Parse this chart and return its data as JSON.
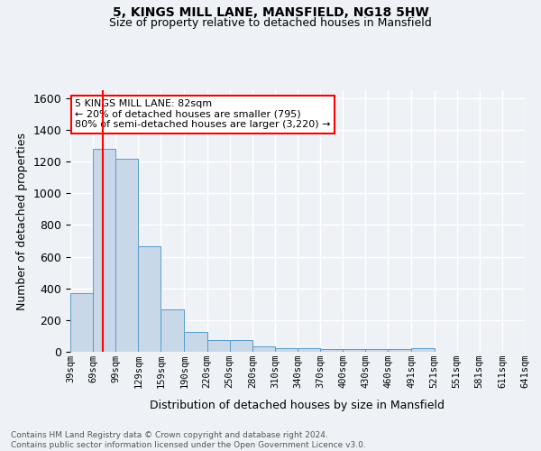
{
  "title1": "5, KINGS MILL LANE, MANSFIELD, NG18 5HW",
  "title2": "Size of property relative to detached houses in Mansfield",
  "xlabel": "Distribution of detached houses by size in Mansfield",
  "ylabel": "Number of detached properties",
  "footnote": "Contains HM Land Registry data © Crown copyright and database right 2024.\nContains public sector information licensed under the Open Government Licence v3.0.",
  "annotation_line1": "5 KINGS MILL LANE: 82sqm",
  "annotation_line2": "← 20% of detached houses are smaller (795)",
  "annotation_line3": "80% of semi-detached houses are larger (3,220) →",
  "bar_color": "#c8d8e8",
  "bar_edge_color": "#5a9ac8",
  "red_line_x": 82,
  "bins": [
    39,
    69,
    99,
    129,
    159,
    190,
    220,
    250,
    280,
    310,
    340,
    370,
    400,
    430,
    460,
    491,
    521,
    551,
    581,
    611,
    641
  ],
  "bin_labels": [
    "39sqm",
    "69sqm",
    "99sqm",
    "129sqm",
    "159sqm",
    "190sqm",
    "220sqm",
    "250sqm",
    "280sqm",
    "310sqm",
    "340sqm",
    "370sqm",
    "400sqm",
    "430sqm",
    "460sqm",
    "491sqm",
    "521sqm",
    "551sqm",
    "581sqm",
    "611sqm",
    "641sqm"
  ],
  "bar_heights": [
    370,
    1280,
    1220,
    665,
    265,
    125,
    75,
    75,
    35,
    25,
    20,
    18,
    15,
    15,
    15,
    20,
    0,
    0,
    0,
    0
  ],
  "ylim": [
    0,
    1650
  ],
  "yticks": [
    0,
    200,
    400,
    600,
    800,
    1000,
    1200,
    1400,
    1600
  ],
  "background_color": "#eef2f7",
  "grid_color": "#ffffff"
}
